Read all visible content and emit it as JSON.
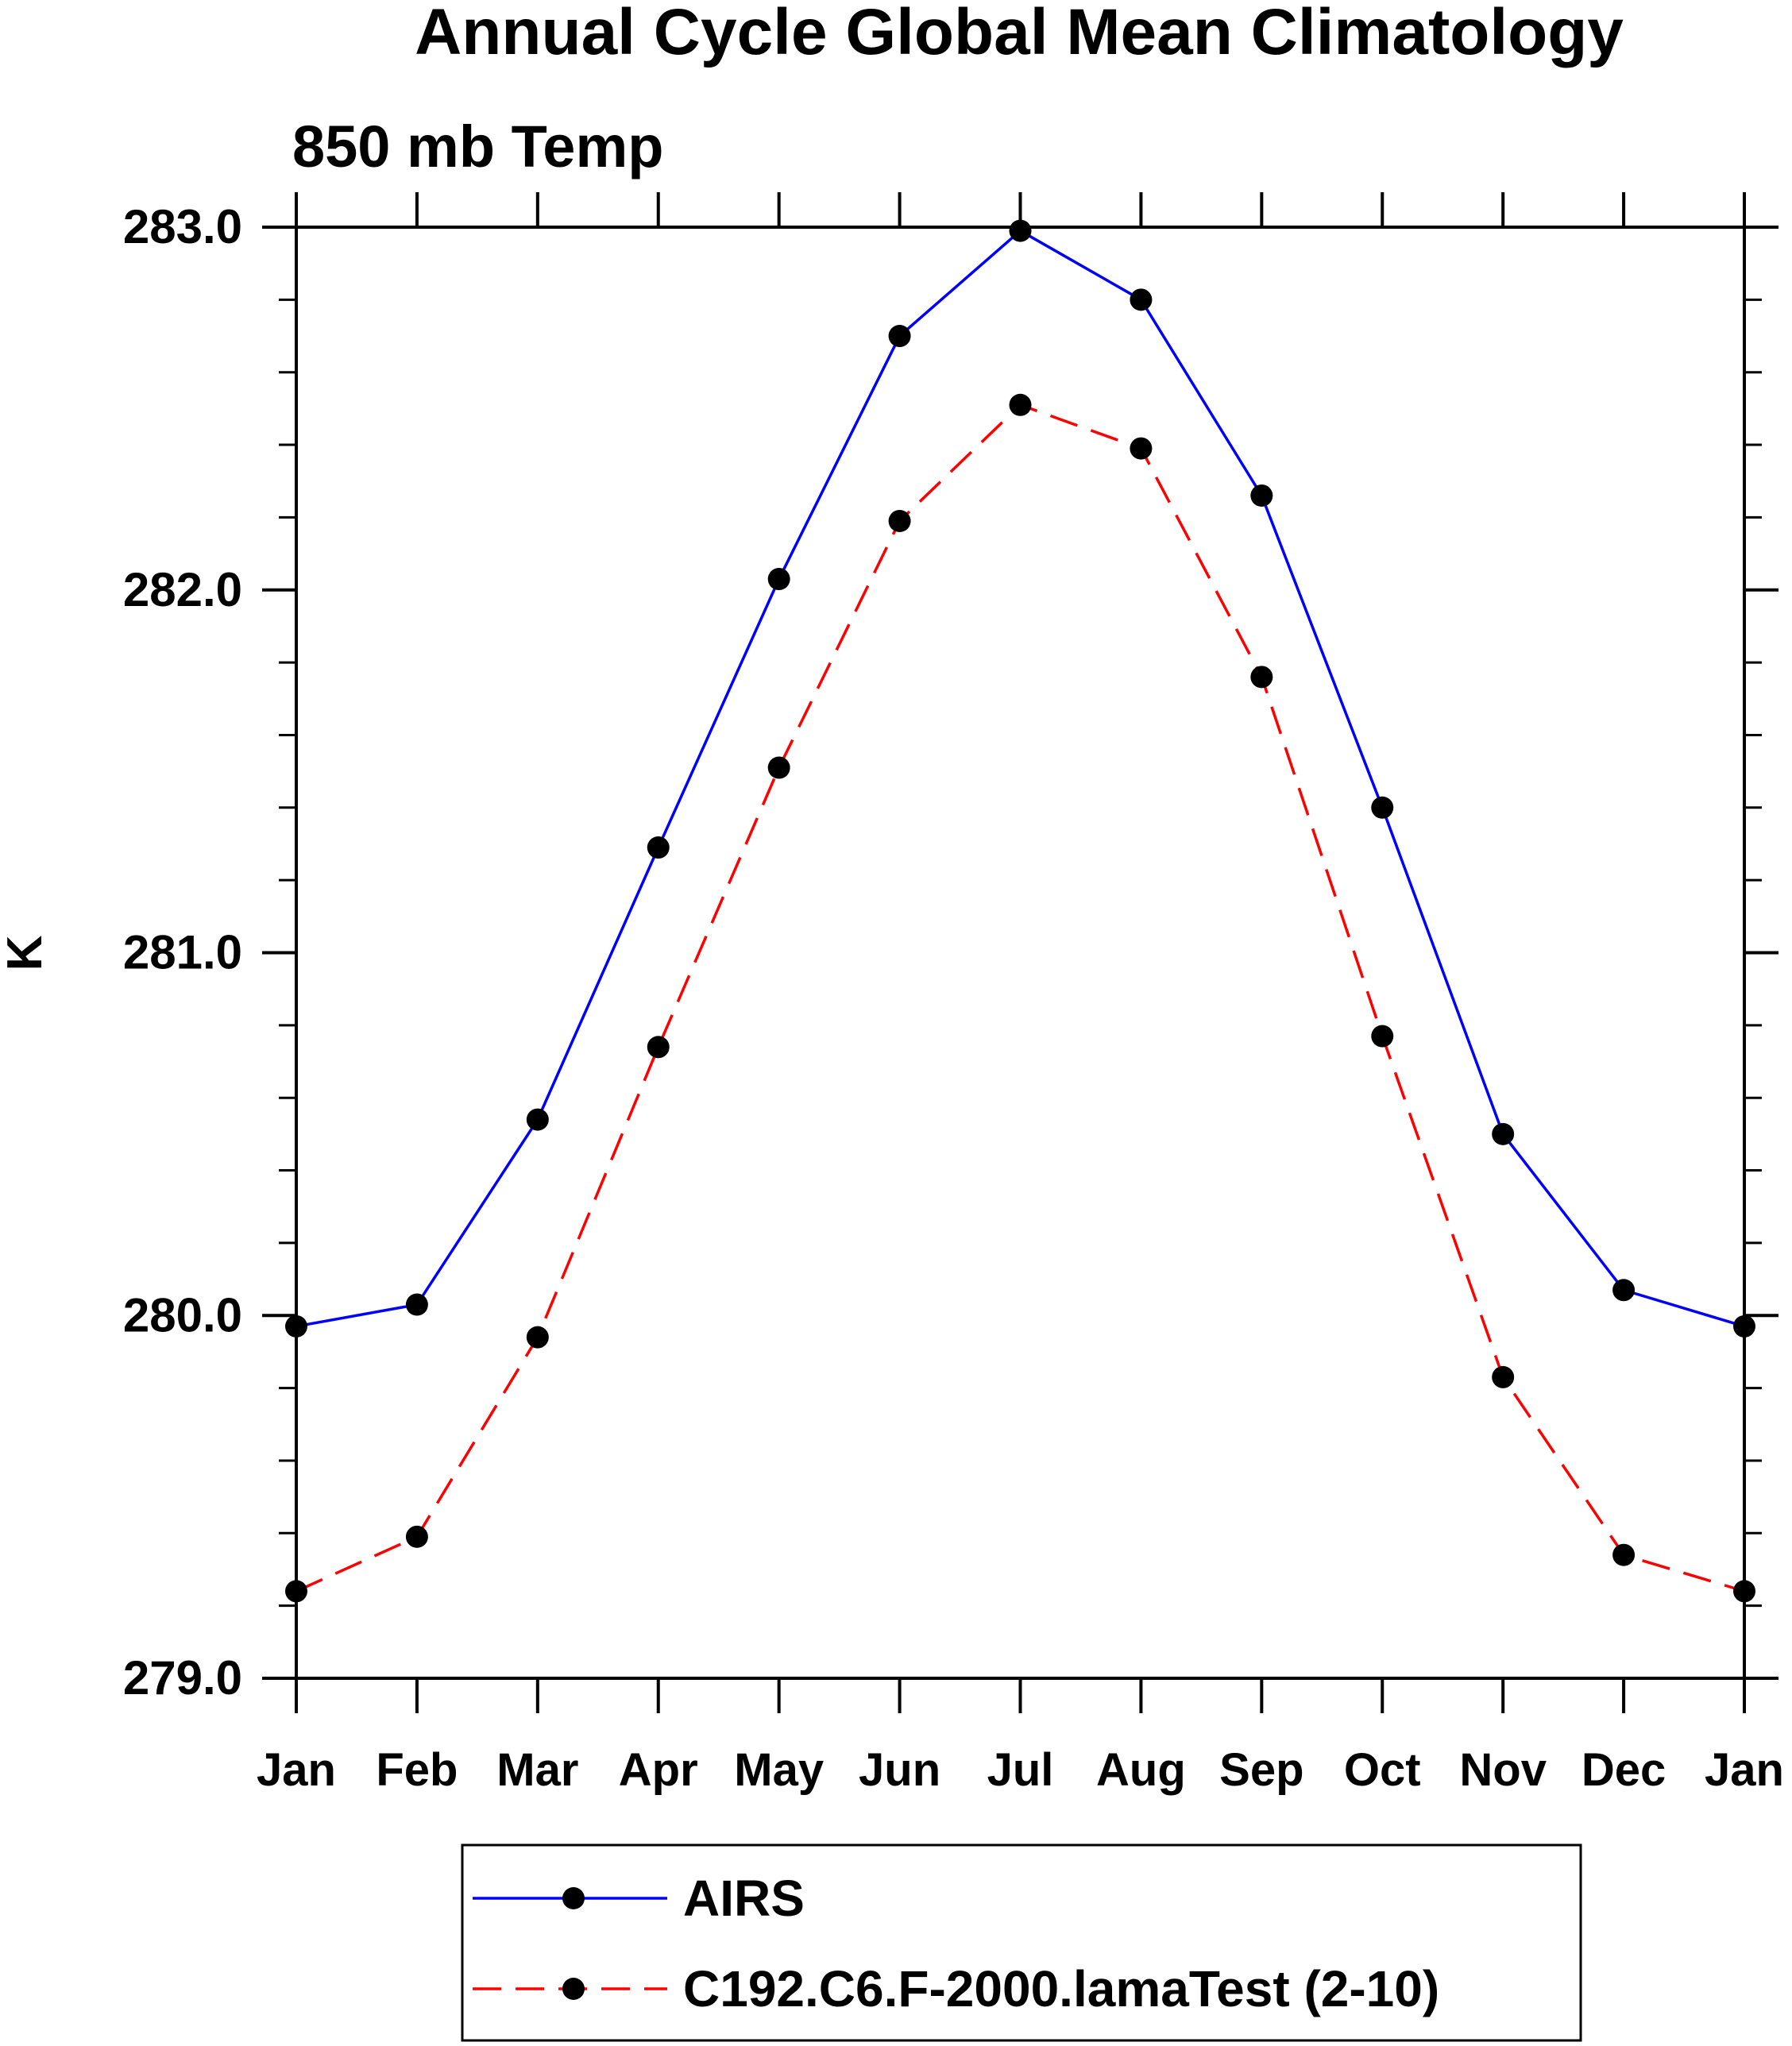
{
  "chart_data": {
    "type": "line",
    "title": "Annual Cycle Global Mean Climatology",
    "subtitle": "850 mb Temp",
    "ylabel": "K",
    "xlabel": "",
    "ylim": [
      279.0,
      283.0
    ],
    "y_major_ticks": [
      279.0,
      280.0,
      281.0,
      282.0,
      283.0
    ],
    "y_tick_labels": [
      "279.0",
      "280.0",
      "281.0",
      "282.0",
      "283.0"
    ],
    "y_minor_step": 0.2,
    "categories": [
      "Jan",
      "Feb",
      "Mar",
      "Apr",
      "May",
      "Jun",
      "Jul",
      "Aug",
      "Sep",
      "Oct",
      "Nov",
      "Dec",
      "Jan"
    ],
    "grid": false,
    "legend_position": "bottom",
    "series": [
      {
        "name": "AIRS",
        "color": "#0000ff",
        "dash": "solid",
        "marker": "filled-circle",
        "values": [
          279.97,
          280.03,
          280.54,
          281.29,
          282.03,
          282.7,
          282.99,
          282.8,
          282.26,
          281.4,
          280.5,
          280.07,
          279.97
        ]
      },
      {
        "name": "C192.C6.F-2000.lamaTest (2-10)",
        "color": "#ff0000",
        "dash": "dashed",
        "marker": "filled-circle",
        "values": [
          279.24,
          279.39,
          279.94,
          280.74,
          281.51,
          282.19,
          282.51,
          282.39,
          281.76,
          280.77,
          279.83,
          279.34,
          279.24
        ]
      }
    ]
  }
}
